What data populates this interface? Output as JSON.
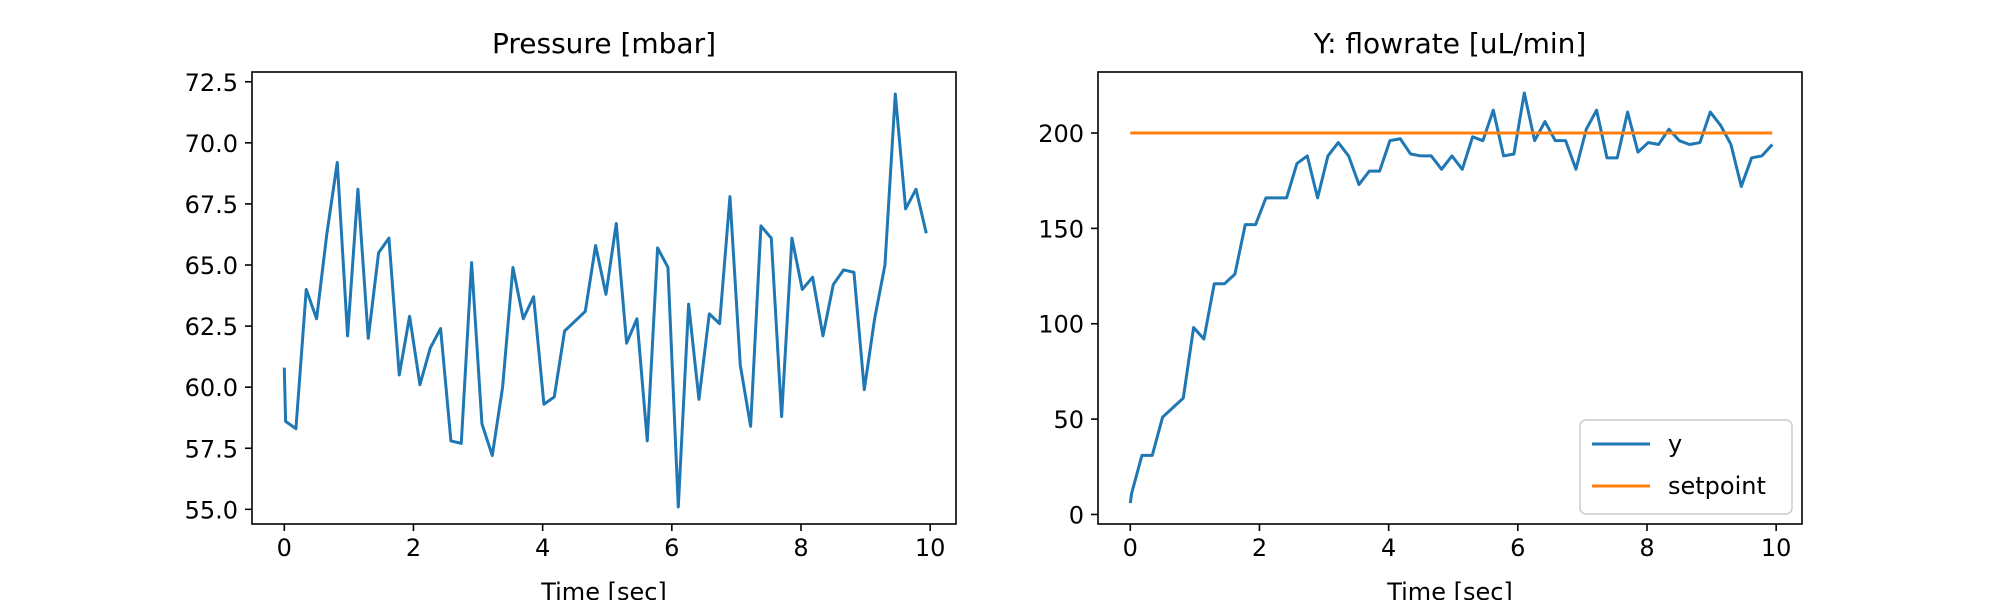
{
  "chart_data": [
    {
      "type": "line",
      "title": "Pressure [mbar]",
      "xlabel": "Time [sec]",
      "ylabel": "",
      "xlim": [
        -0.5,
        10.4
      ],
      "ylim": [
        54.4,
        72.9
      ],
      "xticks": [
        0,
        2,
        4,
        6,
        8,
        10
      ],
      "yticks": [
        55.0,
        57.5,
        60.0,
        62.5,
        65.0,
        67.5,
        70.0,
        72.5
      ],
      "ytick_labels": [
        "55.0",
        "57.5",
        "60.0",
        "62.5",
        "65.0",
        "67.5",
        "70.0",
        "72.5"
      ],
      "grid": false,
      "series": [
        {
          "color": "#1f77b4",
          "x": [
            0.0,
            0.02,
            0.18,
            0.34,
            0.5,
            0.66,
            0.82,
            0.98,
            1.14,
            1.3,
            1.46,
            1.62,
            1.78,
            1.94,
            2.1,
            2.26,
            2.42,
            2.58,
            2.74,
            2.9,
            3.06,
            3.22,
            3.38,
            3.54,
            3.7,
            3.86,
            4.02,
            4.18,
            4.34,
            4.5,
            4.66,
            4.82,
            4.98,
            5.14,
            5.3,
            5.46,
            5.62,
            5.78,
            5.94,
            6.1,
            6.26,
            6.42,
            6.58,
            6.74,
            6.9,
            7.06,
            7.22,
            7.38,
            7.54,
            7.7,
            7.86,
            8.02,
            8.18,
            8.34,
            8.5,
            8.66,
            8.82,
            8.98,
            9.14,
            9.3,
            9.46,
            9.62,
            9.78,
            9.94
          ],
          "y": [
            60.8,
            58.6,
            58.3,
            64.0,
            62.8,
            66.3,
            69.2,
            62.1,
            68.1,
            62.0,
            65.5,
            66.1,
            60.5,
            62.9,
            60.1,
            61.6,
            62.4,
            57.8,
            57.7,
            65.1,
            58.5,
            57.2,
            60.0,
            64.9,
            62.8,
            63.7,
            59.3,
            59.6,
            62.3,
            62.7,
            63.1,
            65.8,
            63.8,
            66.7,
            61.8,
            62.8,
            57.8,
            65.7,
            64.9,
            55.1,
            63.4,
            59.5,
            63.0,
            62.6,
            67.8,
            60.9,
            58.4,
            66.6,
            66.1,
            58.8,
            66.1,
            64.0,
            64.5,
            62.1,
            64.2,
            64.8,
            64.7,
            59.9,
            62.8,
            65.0,
            72.0,
            67.3,
            68.1,
            66.3
          ]
        }
      ]
    },
    {
      "type": "line",
      "title": "Y: flowrate [uL/min]",
      "xlabel": "Time [sec]",
      "ylabel": "",
      "xlim": [
        -0.5,
        10.4
      ],
      "ylim": [
        -5,
        232
      ],
      "xticks": [
        0,
        2,
        4,
        6,
        8,
        10
      ],
      "yticks": [
        0,
        50,
        100,
        150,
        200
      ],
      "ytick_labels": [
        "0",
        "50",
        "100",
        "150",
        "200"
      ],
      "grid": false,
      "legend": {
        "placement": "lower right"
      },
      "series": [
        {
          "name": "y",
          "color": "#1f77b4",
          "x": [
            0.0,
            0.02,
            0.18,
            0.34,
            0.5,
            0.66,
            0.82,
            0.98,
            1.14,
            1.3,
            1.46,
            1.62,
            1.78,
            1.94,
            2.1,
            2.26,
            2.42,
            2.58,
            2.74,
            2.9,
            3.06,
            3.22,
            3.38,
            3.54,
            3.7,
            3.86,
            4.02,
            4.18,
            4.34,
            4.5,
            4.66,
            4.82,
            4.98,
            5.14,
            5.3,
            5.46,
            5.62,
            5.78,
            5.94,
            6.1,
            6.26,
            6.42,
            6.58,
            6.74,
            6.9,
            7.06,
            7.22,
            7.38,
            7.54,
            7.7,
            7.86,
            8.02,
            8.18,
            8.34,
            8.5,
            8.66,
            8.82,
            8.98,
            9.14,
            9.3,
            9.46,
            9.62,
            9.78,
            9.94
          ],
          "y": [
            6,
            11,
            31,
            31,
            51,
            56,
            61,
            98,
            92,
            121,
            121,
            126,
            152,
            152,
            166,
            166,
            166,
            184,
            188,
            166,
            188,
            195,
            188,
            173,
            180,
            180,
            196,
            197,
            189,
            188,
            188,
            181,
            188,
            181,
            198,
            196,
            212,
            188,
            189,
            221,
            196,
            206,
            196,
            196,
            181,
            202,
            212,
            187,
            187,
            211,
            190,
            195,
            194,
            202,
            196,
            194,
            195,
            211,
            204,
            194,
            172,
            187,
            188,
            194
          ]
        },
        {
          "name": "setpoint",
          "color": "#ff7f0e",
          "x": [
            0.0,
            9.94
          ],
          "y": [
            200,
            200
          ]
        }
      ]
    }
  ]
}
